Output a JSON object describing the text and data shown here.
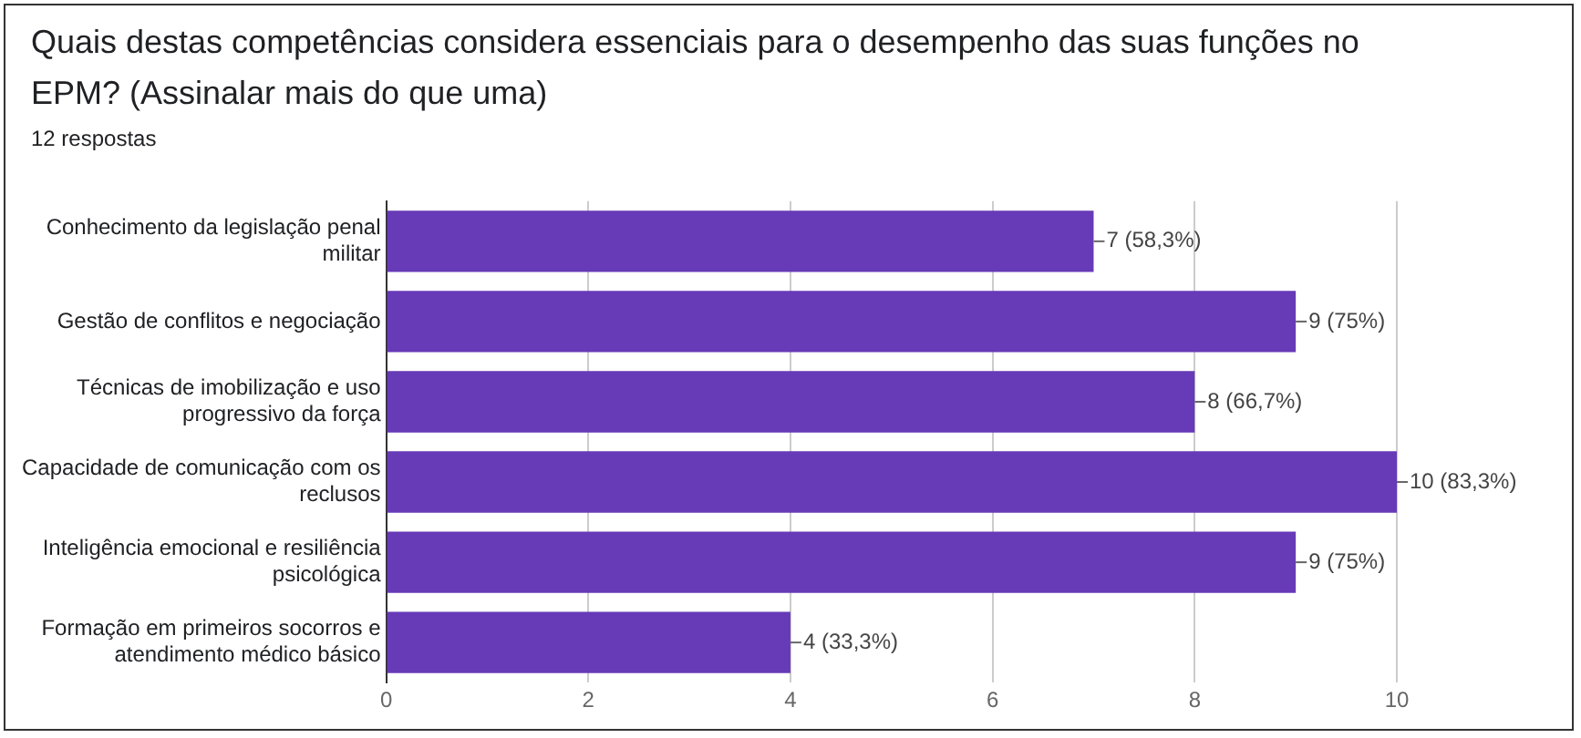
{
  "chart_data": {
    "type": "bar",
    "orientation": "horizontal",
    "title": "Quais destas competências considera essenciais para o desempenho das suas funções no EPM? (Assinalar mais do que uma)",
    "subtitle": "12 respostas",
    "categories": [
      "Conhecimento da legislação penal militar",
      "Gestão de conflitos e negociação",
      "Técnicas de imobilização e uso progressivo da força",
      "Capacidade de comunicação com os reclusos",
      "Inteligência emocional e resiliência psicológica",
      "Formação em primeiros socorros e atendimento médico básico"
    ],
    "values": [
      7,
      9,
      8,
      10,
      9,
      4
    ],
    "value_labels": [
      "7 (58,3%)",
      "9 (75%)",
      "8 (66,7%)",
      "10 (83,3%)",
      "9 (75%)",
      "4 (33,3%)"
    ],
    "color": "#673ab7",
    "xlim": [
      0,
      10
    ],
    "xticks": [
      0,
      2,
      4,
      6,
      8,
      10
    ],
    "grid": "x",
    "legend": false
  }
}
